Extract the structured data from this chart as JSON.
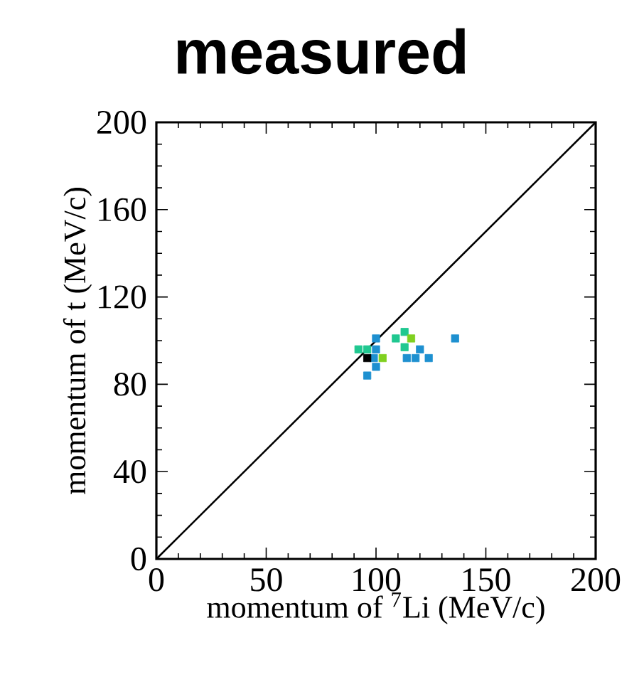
{
  "chart_data": {
    "type": "scatter",
    "title": "measured",
    "xlabel": "momentum of $^{7}$Li (MeV/c)",
    "ylabel": "momentum of t (MeV/c)",
    "xlim": [
      0,
      200
    ],
    "ylim": [
      0,
      200
    ],
    "xticks": [
      0,
      50,
      100,
      150,
      200
    ],
    "yticks": [
      0,
      40,
      80,
      120,
      160,
      200
    ],
    "grid": false,
    "series": [
      {
        "type": "line",
        "color": "#000000",
        "x": [
          0,
          200
        ],
        "values": [
          0,
          200
        ],
        "marker": "none",
        "line_style": "solid"
      },
      {
        "marker": "square",
        "x": [
          96,
          100,
          100,
          100,
          99,
          114,
          118,
          120,
          124,
          136,
          92,
          96,
          113,
          109,
          113,
          116,
          103,
          96
        ],
        "values": [
          84,
          88,
          101,
          96,
          92,
          92,
          92,
          96,
          92,
          101,
          96,
          96,
          104,
          101,
          97,
          101,
          92,
          92
        ],
        "colors": [
          "#1e90d0",
          "#1e90d0",
          "#1e90d0",
          "#1e90d0",
          "#1e90d0",
          "#1e90d0",
          "#1e90d0",
          "#1e90d0",
          "#1e90d0",
          "#1e90d0",
          "#20c890",
          "#20c890",
          "#20c890",
          "#20c890",
          "#20c890",
          "#80d020",
          "#80d020",
          "#000000"
        ]
      }
    ]
  }
}
